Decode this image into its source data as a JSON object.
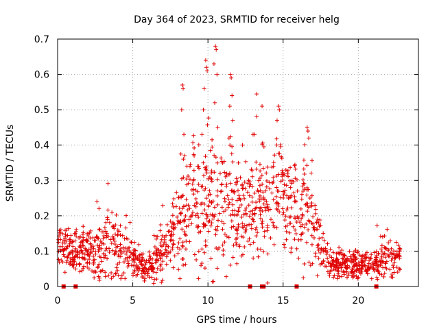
{
  "chart_data": {
    "type": "scatter",
    "title": "Day 364 of 2023, SRMTID for receiver helg",
    "xlabel": "GPS time / hours",
    "ylabel": "SRMTID / TECUs",
    "xlim": [
      0,
      24
    ],
    "ylim": [
      0,
      0.7
    ],
    "xticks": [
      0,
      5,
      10,
      15,
      20
    ],
    "xtick_labels": [
      "0",
      "5",
      "10",
      "15",
      "20"
    ],
    "yticks": [
      0,
      0.1,
      0.2,
      0.3,
      0.4,
      0.5,
      0.6,
      0.7
    ],
    "ytick_labels": [
      "0",
      "0.1",
      "0.2",
      "0.3",
      "0.4",
      "0.5",
      "0.6",
      "0.7"
    ],
    "grid": true,
    "marker": "plus",
    "color": "#e00000",
    "series": [
      {
        "name": "SRMTID",
        "profile_x": [
          0.0,
          0.5,
          1.0,
          1.5,
          2.0,
          2.5,
          3.0,
          3.5,
          4.0,
          4.5,
          5.0,
          5.5,
          6.0,
          6.5,
          7.0,
          7.5,
          8.0,
          8.5,
          9.0,
          9.5,
          10.0,
          10.5,
          11.0,
          11.5,
          12.0,
          12.5,
          13.0,
          13.5,
          14.0,
          14.5,
          15.0,
          15.5,
          16.0,
          16.5,
          17.0,
          17.5,
          18.0,
          18.5,
          19.0,
          19.5,
          20.0,
          20.5,
          21.0,
          21.5,
          22.0,
          22.5,
          22.8
        ],
        "profile_mean": [
          0.12,
          0.11,
          0.1,
          0.11,
          0.1,
          0.09,
          0.12,
          0.12,
          0.1,
          0.09,
          0.08,
          0.06,
          0.06,
          0.07,
          0.1,
          0.13,
          0.18,
          0.2,
          0.22,
          0.21,
          0.24,
          0.24,
          0.22,
          0.22,
          0.21,
          0.2,
          0.25,
          0.24,
          0.24,
          0.28,
          0.27,
          0.22,
          0.2,
          0.24,
          0.15,
          0.12,
          0.08,
          0.06,
          0.06,
          0.06,
          0.06,
          0.07,
          0.06,
          0.08,
          0.08,
          0.08,
          0.08
        ],
        "profile_spread": [
          0.03,
          0.03,
          0.03,
          0.03,
          0.03,
          0.04,
          0.05,
          0.05,
          0.04,
          0.04,
          0.03,
          0.02,
          0.02,
          0.03,
          0.04,
          0.04,
          0.07,
          0.09,
          0.08,
          0.09,
          0.1,
          0.09,
          0.09,
          0.09,
          0.08,
          0.08,
          0.07,
          0.07,
          0.08,
          0.09,
          0.08,
          0.07,
          0.07,
          0.08,
          0.06,
          0.04,
          0.02,
          0.02,
          0.02,
          0.02,
          0.02,
          0.02,
          0.02,
          0.03,
          0.03,
          0.03,
          0.03
        ],
        "peaks": [
          [
            8.3,
            0.57
          ],
          [
            8.35,
            0.56
          ],
          [
            8.25,
            0.5
          ],
          [
            8.4,
            0.43
          ],
          [
            8.45,
            0.37
          ],
          [
            9.6,
            0.43
          ],
          [
            9.7,
            0.5
          ],
          [
            9.75,
            0.56
          ],
          [
            9.85,
            0.64
          ],
          [
            9.9,
            0.62
          ],
          [
            9.95,
            0.61
          ],
          [
            10.5,
            0.68
          ],
          [
            10.55,
            0.67
          ],
          [
            10.4,
            0.63
          ],
          [
            10.6,
            0.6
          ],
          [
            10.45,
            0.52
          ],
          [
            10.65,
            0.45
          ],
          [
            11.5,
            0.6
          ],
          [
            11.55,
            0.59
          ],
          [
            11.6,
            0.54
          ],
          [
            11.45,
            0.51
          ],
          [
            11.65,
            0.47
          ],
          [
            11.4,
            0.42
          ],
          [
            13.0,
            0.43
          ],
          [
            13.1,
            0.43
          ],
          [
            13.6,
            0.51
          ],
          [
            14.7,
            0.51
          ],
          [
            14.75,
            0.5
          ],
          [
            14.6,
            0.47
          ],
          [
            16.6,
            0.45
          ],
          [
            16.65,
            0.44
          ],
          [
            16.7,
            0.42
          ],
          [
            12.3,
            0.4
          ]
        ]
      }
    ],
    "gap_markers_x": [
      0.4,
      1.2,
      12.8,
      13.6,
      13.7,
      15.9,
      21.2
    ]
  }
}
